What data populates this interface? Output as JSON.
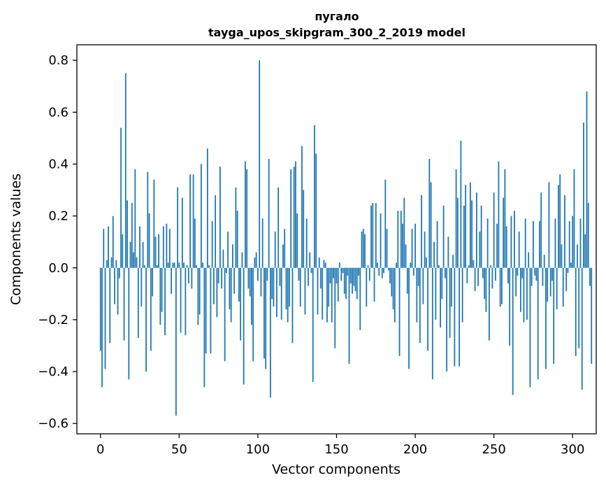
{
  "chart_data": {
    "type": "bar",
    "title_line1": "пугало",
    "title_line2": "tayga_upos_skipgram_300_2_2019 model",
    "xlabel": "Vector components",
    "ylabel": "Components values",
    "xlim": [
      -15,
      315
    ],
    "ylim": [
      -0.64,
      0.86
    ],
    "xticks": [
      0,
      50,
      100,
      150,
      200,
      250,
      300
    ],
    "xtick_labels": [
      "0",
      "50",
      "100",
      "150",
      "200",
      "250",
      "300"
    ],
    "yticks": [
      -0.6,
      -0.4,
      -0.2,
      0.0,
      0.2,
      0.4,
      0.6,
      0.8
    ],
    "ytick_labels": [
      "−0.6",
      "−0.4",
      "−0.2",
      "0.0",
      "0.2",
      "0.4",
      "0.6",
      "0.8"
    ],
    "bar_color": "#1f77b4",
    "grid": false,
    "values": [
      -0.32,
      -0.46,
      0.15,
      -0.39,
      0.03,
      0.16,
      -0.29,
      0.04,
      0.2,
      -0.14,
      0.03,
      -0.18,
      -0.04,
      0.54,
      0.13,
      -0.28,
      0.75,
      0.26,
      -0.43,
      0.1,
      0.25,
      0.06,
      0.38,
      0.04,
      -0.27,
      0.16,
      -0.15,
      0.1,
      0.01,
      -0.4,
      0.37,
      0.21,
      -0.32,
      -0.11,
      0.34,
      0.12,
      0.01,
      0.13,
      -0.22,
      -0.17,
      0.16,
      -0.26,
      0.17,
      0.02,
      0.15,
      -0.1,
      0.02,
      0.02,
      -0.57,
      0.31,
      0.02,
      -0.25,
      0.27,
      0.02,
      -0.26,
      0.01,
      -0.06,
      0.36,
      -0.08,
      0.36,
      0.19,
      0.01,
      -0.22,
      -0.18,
      0.4,
      0.02,
      -0.46,
      -0.33,
      0.46,
      0.01,
      -0.33,
      0.18,
      -0.14,
      0.28,
      -0.19,
      -0.06,
      0.39,
      -0.08,
      0.07,
      -0.36,
      -0.02,
      0.14,
      -0.16,
      -0.21,
      0.09,
      -0.1,
      0.31,
      0.22,
      -0.13,
      -0.28,
      0.06,
      -0.45,
      0.41,
      0.38,
      -0.08,
      -0.11,
      -0.22,
      -0.36,
      0.04,
      0.06,
      -0.05,
      0.8,
      -0.11,
      0.19,
      -0.35,
      -0.39,
      -0.05,
      0.42,
      -0.5,
      -0.12,
      -0.15,
      0.14,
      -0.19,
      0.31,
      -0.07,
      -0.2,
      0.09,
      0.15,
      -0.16,
      -0.21,
      -0.15,
      0.38,
      -0.29,
      0.39,
      0.41,
      0.21,
      -0.05,
      -0.15,
      0.47,
      0.3,
      -0.18,
      0.19,
      -0.07,
      0.06,
      -0.02,
      -0.44,
      0.55,
      0.44,
      -0.18,
      0.04,
      -0.08,
      -0.2,
      0.03,
      0.02,
      -0.21,
      -0.15,
      -0.06,
      -0.21,
      -0.04,
      -0.31,
      -0.06,
      -0.13,
      0.02,
      -0.05,
      -0.02,
      -0.1,
      -0.12,
      -0.03,
      -0.37,
      -0.06,
      -0.1,
      -0.07,
      -0.09,
      -0.12,
      -0.03,
      -0.24,
      0.14,
      0.15,
      0.13,
      -0.15,
      0.01,
      -0.05,
      0.24,
      0.25,
      -0.13,
      0.25,
      0.02,
      -0.03,
      0.21,
      -0.04,
      -0.02,
      0.34,
      0.15,
      -0.01,
      -0.06,
      -0.11,
      -0.16,
      -0.21,
      0.02,
      0.22,
      -0.34,
      0.22,
      0.17,
      0.27,
      0.09,
      -0.1,
      -0.39,
      0.02,
      0.15,
      -0.03,
      0.17,
      -0.21,
      -0.07,
      -0.29,
      0.28,
      -0.14,
      0.14,
      0.04,
      -0.32,
      0.42,
      0.33,
      -0.43,
      0.1,
      -0.2,
      0.18,
      0.01,
      -0.23,
      -0.12,
      0.24,
      -0.04,
      -0.4,
      0.12,
      -0.27,
      -0.15,
      0.05,
      -0.38,
      0.38,
      0.27,
      -0.38,
      0.49,
      -0.21,
      0.24,
      0.32,
      -0.06,
      0.01,
      0.33,
      0.26,
      0.03,
      -0.09,
      0.29,
      -0.07,
      0.14,
      0.24,
      -0.04,
      -0.12,
      -0.17,
      0.19,
      -0.28,
      0.01,
      -0.08,
      0.29,
      -0.05,
      0.17,
      0.41,
      -0.15,
      -0.14,
      0.27,
      0.38,
      0.16,
      -0.06,
      -0.3,
      0.2,
      -0.49,
      0.22,
      -0.11,
      -0.03,
      0.14,
      -0.17,
      -0.04,
      -0.21,
      0.19,
      -0.2,
      0.06,
      -0.46,
      -0.07,
      0.18,
      -0.03,
      -0.05,
      -0.43,
      0.18,
      0.29,
      -0.07,
      0.05,
      -0.39,
      -0.13,
      0.33,
      -0.11,
      -0.05,
      -0.37,
      0.19,
      -0.16,
      0.32,
      0.36,
      0.09,
      -0.15,
      0.28,
      -0.09,
      -0.02,
      0.18,
      0.02,
      0.2,
      0.38,
      -0.34,
      0.09,
      -0.31,
      0.19,
      -0.47,
      0.56,
      0.13,
      0.68,
      0.25,
      -0.07,
      -0.37
    ]
  }
}
